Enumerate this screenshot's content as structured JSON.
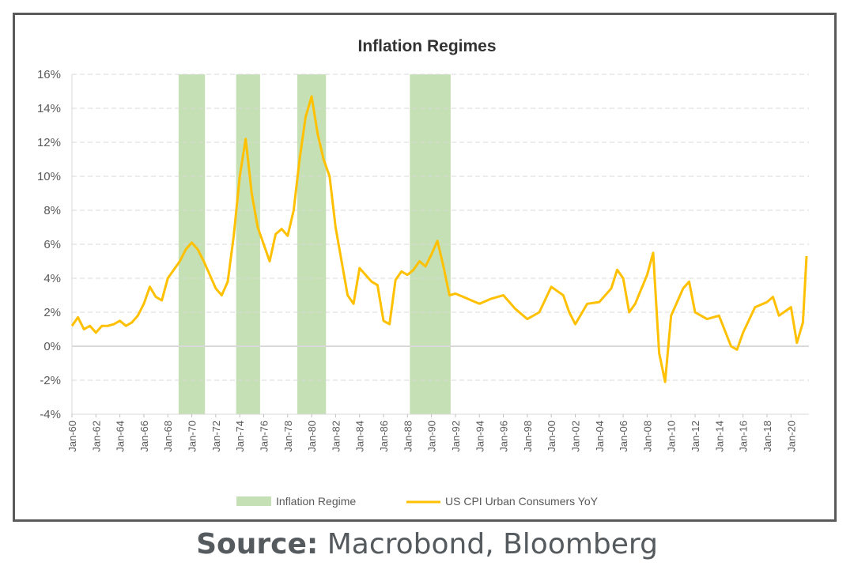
{
  "source": {
    "label": "Source:",
    "text": " Macrobond, Bloomberg"
  },
  "chart_data": {
    "type": "line",
    "title": "Inflation Regimes",
    "xlabel": "",
    "ylabel": "",
    "ylim": [
      -4,
      16
    ],
    "xlim": [
      1960,
      2021.5
    ],
    "yticks": [
      -4,
      -2,
      0,
      2,
      4,
      6,
      8,
      10,
      12,
      14,
      16
    ],
    "ytick_labels": [
      "-4%",
      "-2%",
      "0%",
      "2%",
      "4%",
      "6%",
      "8%",
      "10%",
      "12%",
      "14%",
      "16%"
    ],
    "xticks": [
      1960,
      1962,
      1964,
      1966,
      1968,
      1970,
      1972,
      1974,
      1976,
      1978,
      1980,
      1982,
      1984,
      1986,
      1988,
      1990,
      1992,
      1994,
      1996,
      1998,
      2000,
      2002,
      2004,
      2006,
      2008,
      2010,
      2012,
      2014,
      2016,
      2018,
      2020
    ],
    "xtick_labels": [
      "Jan-60",
      "Jan-62",
      "Jan-64",
      "Jan-66",
      "Jan-68",
      "Jan-70",
      "Jan-72",
      "Jan-74",
      "Jan-76",
      "Jan-78",
      "Jan-80",
      "Jan-82",
      "Jan-84",
      "Jan-86",
      "Jan-88",
      "Jan-90",
      "Jan-92",
      "Jan-94",
      "Jan-96",
      "Jan-98",
      "Jan-00",
      "Jan-02",
      "Jan-04",
      "Jan-06",
      "Jan-08",
      "Jan-10",
      "Jan-12",
      "Jan-14",
      "Jan-16",
      "Jan-18",
      "Jan-20"
    ],
    "grid": true,
    "legend_position": "bottom",
    "regimes": {
      "name": "Inflation Regime",
      "color": "#c5e0b4",
      "periods": [
        [
          1968.9,
          1971.1
        ],
        [
          1973.7,
          1975.7
        ],
        [
          1978.8,
          1981.2
        ],
        [
          1988.2,
          1991.6
        ]
      ]
    },
    "series": [
      {
        "name": "US CPI Urban Consumers YoY",
        "color": "#ffc000",
        "x": [
          1960,
          1960.5,
          1961,
          1961.5,
          1962,
          1962.5,
          1963,
          1963.5,
          1964,
          1964.5,
          1965,
          1965.5,
          1966,
          1966.5,
          1967,
          1967.5,
          1968,
          1968.5,
          1969,
          1969.5,
          1970,
          1970.5,
          1971,
          1971.5,
          1972,
          1972.5,
          1973,
          1973.5,
          1974,
          1974.5,
          1975,
          1975.5,
          1976,
          1976.5,
          1977,
          1977.5,
          1978,
          1978.5,
          1979,
          1979.5,
          1980,
          1980.5,
          1981,
          1981.5,
          1982,
          1982.5,
          1983,
          1983.5,
          1984,
          1984.5,
          1985,
          1985.5,
          1986,
          1986.5,
          1987,
          1987.5,
          1988,
          1988.5,
          1989,
          1989.5,
          1990,
          1990.5,
          1991,
          1991.5,
          1992,
          1993,
          1994,
          1995,
          1996,
          1997,
          1998,
          1999,
          2000,
          2001,
          2001.5,
          2002,
          2003,
          2004,
          2005,
          2005.5,
          2006,
          2006.5,
          2007,
          2008,
          2008.5,
          2009,
          2009.5,
          2010,
          2011,
          2011.5,
          2012,
          2013,
          2014,
          2015,
          2015.5,
          2016,
          2017,
          2018,
          2018.5,
          2019,
          2020,
          2020.5,
          2021,
          2021.3
        ],
        "values": [
          1.2,
          1.7,
          1.0,
          1.2,
          0.8,
          1.2,
          1.2,
          1.3,
          1.5,
          1.2,
          1.4,
          1.8,
          2.5,
          3.5,
          2.9,
          2.7,
          4.0,
          4.5,
          5.0,
          5.7,
          6.1,
          5.7,
          5.0,
          4.2,
          3.4,
          3.0,
          3.8,
          6.5,
          10.0,
          12.2,
          9.0,
          7.0,
          6.0,
          5.0,
          6.6,
          6.9,
          6.5,
          8.0,
          11.0,
          13.5,
          14.7,
          12.5,
          11.0,
          10.0,
          7.0,
          5.0,
          3.0,
          2.5,
          4.6,
          4.2,
          3.8,
          3.6,
          1.5,
          1.3,
          3.9,
          4.4,
          4.2,
          4.5,
          5.0,
          4.7,
          5.4,
          6.2,
          4.7,
          3.0,
          3.1,
          2.8,
          2.5,
          2.8,
          3.0,
          2.2,
          1.6,
          2.0,
          3.5,
          3.0,
          2.0,
          1.3,
          2.5,
          2.6,
          3.4,
          4.5,
          4.0,
          2.0,
          2.5,
          4.2,
          5.5,
          -0.4,
          -2.1,
          1.8,
          3.4,
          3.8,
          2.0,
          1.6,
          1.8,
          0.0,
          -0.2,
          0.8,
          2.3,
          2.6,
          2.9,
          1.8,
          2.3,
          0.2,
          1.4,
          5.3
        ]
      }
    ]
  }
}
